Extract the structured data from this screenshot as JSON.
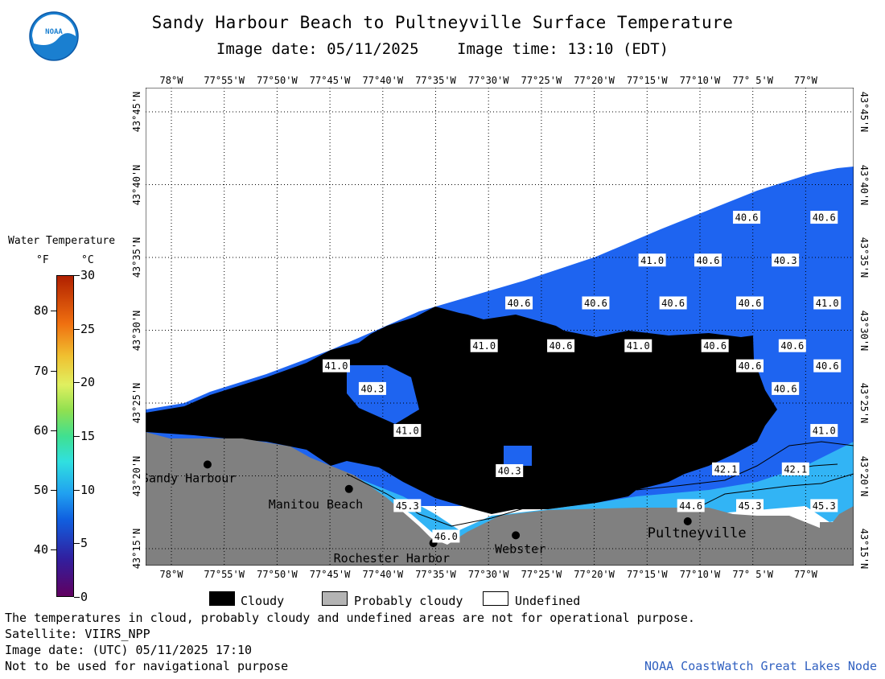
{
  "header": {
    "title": "Sandy Harbour Beach to Pultneyville Surface Temperature",
    "image_date": "Image date: 05/11/2025",
    "image_time": "Image time: 13:10 (EDT)"
  },
  "map": {
    "lon_labels": [
      "78°W",
      "77°55'W",
      "77°50'W",
      "77°45'W",
      "77°40'W",
      "77°35'W",
      "77°30'W",
      "77°25'W",
      "77°20'W",
      "77°15'W",
      "77°10'W",
      "77° 5'W",
      "77°W"
    ],
    "lat_labels": [
      "43°45'N",
      "43°40'N",
      "43°35'N",
      "43°30'N",
      "43°25'N",
      "43°20'N",
      "43°15'N"
    ],
    "places": [
      {
        "name": "Sandy Harbour",
        "lon": -77.943,
        "lat": 43.35
      },
      {
        "name": "Manitou Beach",
        "lon": -77.72,
        "lat": 43.322
      },
      {
        "name": "Rochester Harbor",
        "lon": -77.587,
        "lat": 43.26
      },
      {
        "name": "Webster",
        "lon": -77.457,
        "lat": 43.269
      },
      {
        "name": "Pultneyville",
        "lon": -77.186,
        "lat": 43.285
      }
    ],
    "temperature_labels": [
      {
        "value": "40.6",
        "lon": -77.093,
        "lat": 43.633
      },
      {
        "value": "40.6",
        "lon": -76.971,
        "lat": 43.633
      },
      {
        "value": "41.0",
        "lon": -77.242,
        "lat": 43.584
      },
      {
        "value": "40.6",
        "lon": -77.154,
        "lat": 43.584
      },
      {
        "value": "40.3",
        "lon": -77.032,
        "lat": 43.584
      },
      {
        "value": "40.6",
        "lon": -77.452,
        "lat": 43.535
      },
      {
        "value": "40.6",
        "lon": -77.331,
        "lat": 43.535
      },
      {
        "value": "40.6",
        "lon": -77.209,
        "lat": 43.535
      },
      {
        "value": "40.6",
        "lon": -77.088,
        "lat": 43.535
      },
      {
        "value": "41.0",
        "lon": -76.966,
        "lat": 43.535
      },
      {
        "value": "41.0",
        "lon": -77.507,
        "lat": 43.486
      },
      {
        "value": "40.6",
        "lon": -77.386,
        "lat": 43.486
      },
      {
        "value": "41.0",
        "lon": -77.264,
        "lat": 43.486
      },
      {
        "value": "40.6",
        "lon": -77.143,
        "lat": 43.486
      },
      {
        "value": "40.6",
        "lon": -77.021,
        "lat": 43.486
      },
      {
        "value": "41.0",
        "lon": -77.74,
        "lat": 43.463
      },
      {
        "value": "40.6",
        "lon": -77.088,
        "lat": 43.463
      },
      {
        "value": "40.6",
        "lon": -76.966,
        "lat": 43.463
      },
      {
        "value": "40.3",
        "lon": -77.683,
        "lat": 43.437
      },
      {
        "value": "40.6",
        "lon": -77.032,
        "lat": 43.437
      },
      {
        "value": "41.0",
        "lon": -77.628,
        "lat": 43.389
      },
      {
        "value": "41.0",
        "lon": -76.971,
        "lat": 43.389
      },
      {
        "value": "42.1",
        "lon": -77.126,
        "lat": 43.345
      },
      {
        "value": "42.1",
        "lon": -77.016,
        "lat": 43.345
      },
      {
        "value": "40.3",
        "lon": -77.467,
        "lat": 43.343
      },
      {
        "value": "45.3",
        "lon": -77.628,
        "lat": 43.303
      },
      {
        "value": "44.6",
        "lon": -77.181,
        "lat": 43.303
      },
      {
        "value": "45.3",
        "lon": -77.088,
        "lat": 43.303
      },
      {
        "value": "45.3",
        "lon": -76.971,
        "lat": 43.303
      },
      {
        "value": "46.0",
        "lon": -77.567,
        "lat": 43.268
      }
    ]
  },
  "legend": {
    "title": "Water Temperature",
    "unit_f": "°F",
    "unit_c": "°C",
    "range_f": [
      32,
      86
    ],
    "range_c": [
      0,
      30
    ],
    "ticks_f": [
      "80",
      "70",
      "60",
      "50",
      "40"
    ],
    "ticks_c": [
      "30",
      "25",
      "20",
      "15",
      "10",
      "5",
      "0"
    ]
  },
  "key": {
    "cloudy": "Cloudy",
    "probably_cloudy": "Probably cloudy",
    "undefined": "Undefined",
    "cloudy_color": "#000000",
    "probably_cloudy_color": "#b4b4b4",
    "undefined_color": "#ffffff"
  },
  "colors": {
    "land": "#808080",
    "cloud": "#000000",
    "water_cold": "#1e64f0",
    "water_warm": "#32b4f5"
  },
  "footer": {
    "note": "The temperatures in cloud, probably cloudy and undefined areas are not for operational purpose.",
    "satellite": "Satellite: VIIRS_NPP",
    "utc_date": "Image date: (UTC) 05/11/2025  17:10",
    "nav": "Not to be used for navigational purpose",
    "credit": "NOAA CoastWatch Great Lakes Node"
  }
}
